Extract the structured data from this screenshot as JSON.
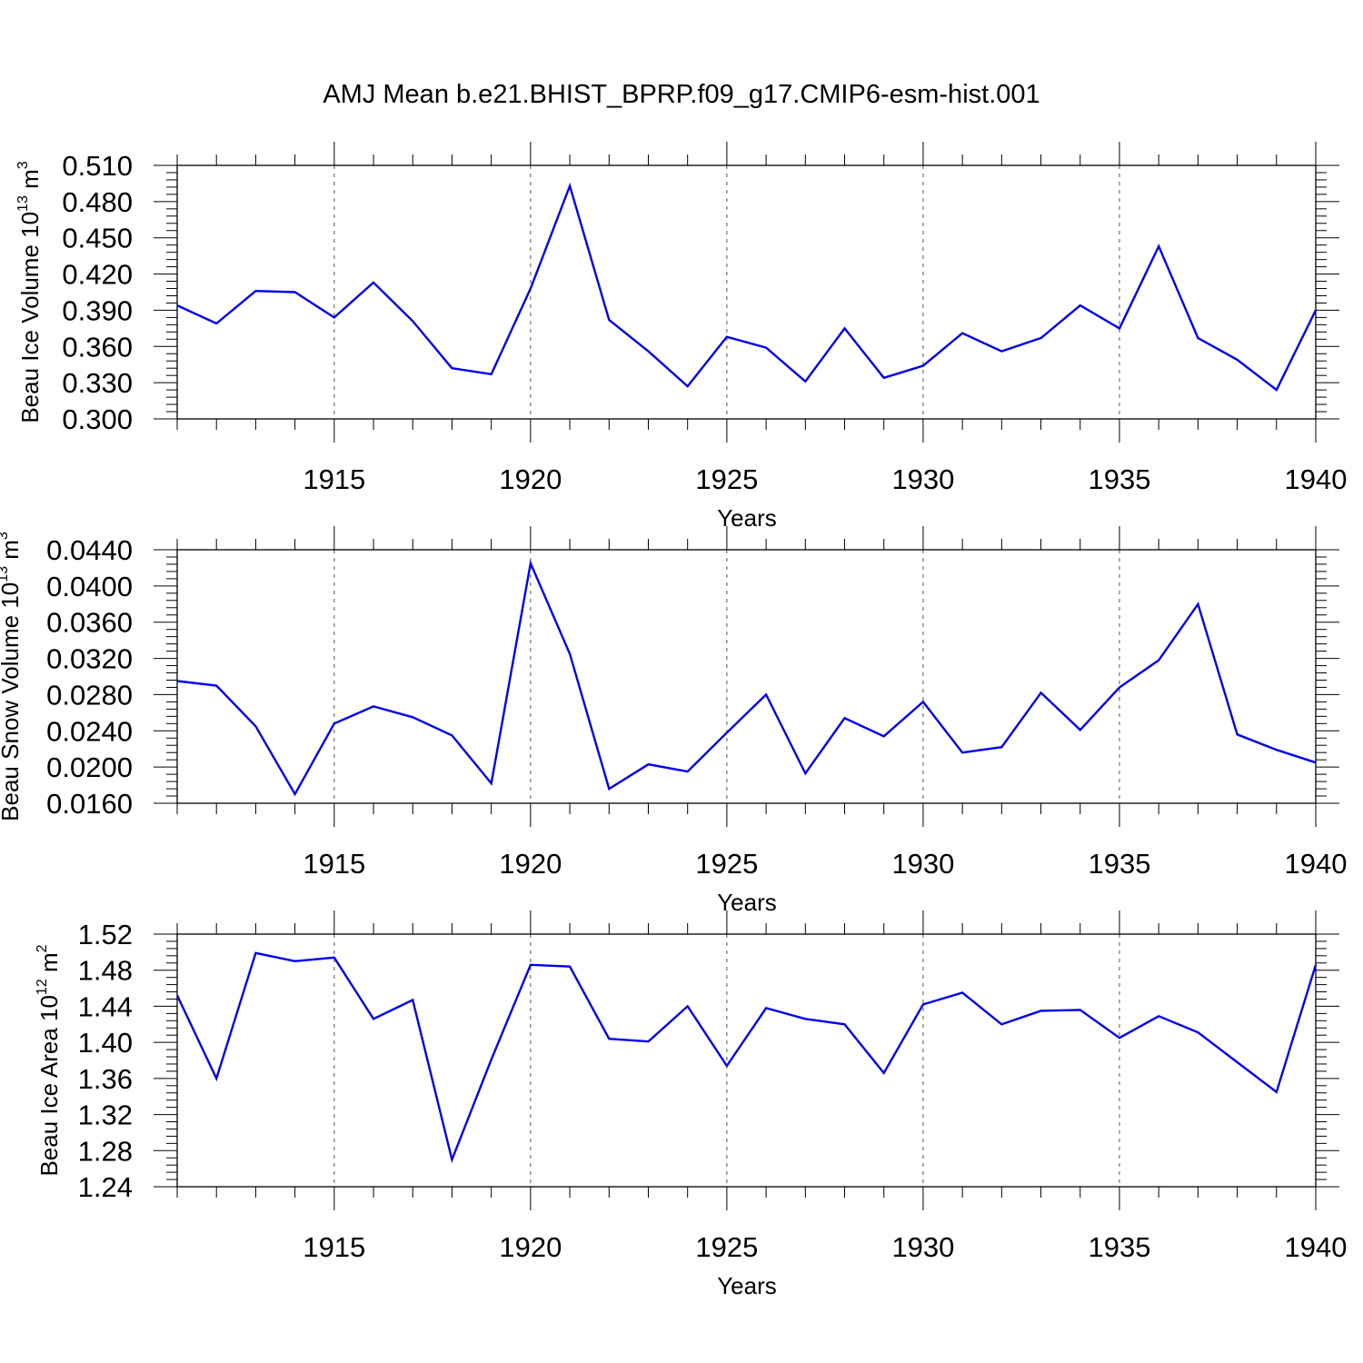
{
  "title": "AMJ Mean b.e21.BHIST_BPRP.f09_g17.CMIP6-esm-hist.001",
  "colors": {
    "line": "#0000ee",
    "axis": "#000000",
    "grid": "#555555"
  },
  "chart_data": [
    {
      "type": "line",
      "title": "",
      "xlabel": "Years",
      "ylabel": {
        "base": "Beau Ice Volume 10",
        "exp": "13",
        "unit": " m",
        "unit_exp": "3"
      },
      "xlim": [
        1911,
        1940
      ],
      "ylim": [
        0.3,
        0.51
      ],
      "x_ticks": [
        1915,
        1920,
        1925,
        1930,
        1935,
        1940
      ],
      "x_tick_labels": [
        "1915",
        "1920",
        "1925",
        "1930",
        "1935",
        "1940"
      ],
      "y_ticks": [
        0.3,
        0.33,
        0.36,
        0.39,
        0.42,
        0.45,
        0.48,
        0.51
      ],
      "y_tick_labels": [
        "0.300",
        "0.330",
        "0.360",
        "0.390",
        "0.420",
        "0.450",
        "0.480",
        "0.510"
      ],
      "grid": "vertical dashed at major x ticks",
      "x": [
        1911,
        1912,
        1913,
        1914,
        1915,
        1916,
        1917,
        1918,
        1919,
        1920,
        1921,
        1922,
        1923,
        1924,
        1925,
        1926,
        1927,
        1928,
        1929,
        1930,
        1931,
        1932,
        1933,
        1934,
        1935,
        1936,
        1937,
        1938,
        1939,
        1940
      ],
      "values": [
        0.394,
        0.379,
        0.406,
        0.405,
        0.384,
        0.413,
        0.381,
        0.342,
        0.337,
        0.408,
        0.493,
        0.382,
        0.356,
        0.327,
        0.368,
        0.359,
        0.331,
        0.375,
        0.334,
        0.344,
        0.371,
        0.356,
        0.367,
        0.394,
        0.375,
        0.443,
        0.367,
        0.349,
        0.324,
        0.39
      ]
    },
    {
      "type": "line",
      "title": "",
      "xlabel": "Years",
      "ylabel": {
        "base": "Beau Snow Volume 10",
        "exp": "13",
        "unit": " m",
        "unit_exp": "3"
      },
      "xlim": [
        1911,
        1940
      ],
      "ylim": [
        0.016,
        0.044
      ],
      "x_ticks": [
        1915,
        1920,
        1925,
        1930,
        1935,
        1940
      ],
      "x_tick_labels": [
        "1915",
        "1920",
        "1925",
        "1930",
        "1935",
        "1940"
      ],
      "y_ticks": [
        0.016,
        0.02,
        0.024,
        0.028,
        0.032,
        0.036,
        0.04,
        0.044
      ],
      "y_tick_labels": [
        "0.0160",
        "0.0200",
        "0.0240",
        "0.0280",
        "0.0320",
        "0.0360",
        "0.0400",
        "0.0440"
      ],
      "grid": "vertical dashed at major x ticks",
      "x": [
        1911,
        1912,
        1913,
        1914,
        1915,
        1916,
        1917,
        1918,
        1919,
        1920,
        1921,
        1922,
        1923,
        1924,
        1925,
        1926,
        1927,
        1928,
        1929,
        1930,
        1931,
        1932,
        1933,
        1934,
        1935,
        1936,
        1937,
        1938,
        1939,
        1940
      ],
      "values": [
        0.0295,
        0.029,
        0.0245,
        0.017,
        0.0248,
        0.0267,
        0.0255,
        0.0235,
        0.0182,
        0.0425,
        0.0325,
        0.0176,
        0.0203,
        0.0195,
        0.0238,
        0.028,
        0.0193,
        0.0254,
        0.0234,
        0.0272,
        0.0216,
        0.0222,
        0.0282,
        0.0241,
        0.0288,
        0.0318,
        0.038,
        0.0236,
        0.0219,
        0.0205
      ]
    },
    {
      "type": "line",
      "title": "",
      "xlabel": "Years",
      "ylabel": {
        "base": "Beau Ice Area 10",
        "exp": "12",
        "unit": " m",
        "unit_exp": "2"
      },
      "xlim": [
        1911,
        1940
      ],
      "ylim": [
        1.24,
        1.52
      ],
      "x_ticks": [
        1915,
        1920,
        1925,
        1930,
        1935,
        1940
      ],
      "x_tick_labels": [
        "1915",
        "1920",
        "1925",
        "1930",
        "1935",
        "1940"
      ],
      "y_ticks": [
        1.24,
        1.28,
        1.32,
        1.36,
        1.4,
        1.44,
        1.48,
        1.52
      ],
      "y_tick_labels": [
        "1.24",
        "1.28",
        "1.32",
        "1.36",
        "1.40",
        "1.44",
        "1.48",
        "1.52"
      ],
      "grid": "vertical dashed at major x ticks",
      "x": [
        1911,
        1912,
        1913,
        1914,
        1915,
        1916,
        1917,
        1918,
        1919,
        1920,
        1921,
        1922,
        1923,
        1924,
        1925,
        1926,
        1927,
        1928,
        1929,
        1930,
        1931,
        1932,
        1933,
        1934,
        1935,
        1936,
        1937,
        1938,
        1939,
        1940
      ],
      "values": [
        1.452,
        1.36,
        1.499,
        1.49,
        1.494,
        1.426,
        1.447,
        1.27,
        1.381,
        1.486,
        1.484,
        1.404,
        1.401,
        1.44,
        1.374,
        1.438,
        1.426,
        1.42,
        1.366,
        1.442,
        1.455,
        1.42,
        1.435,
        1.436,
        1.405,
        1.429,
        1.411,
        1.378,
        1.345,
        1.486
      ]
    }
  ]
}
